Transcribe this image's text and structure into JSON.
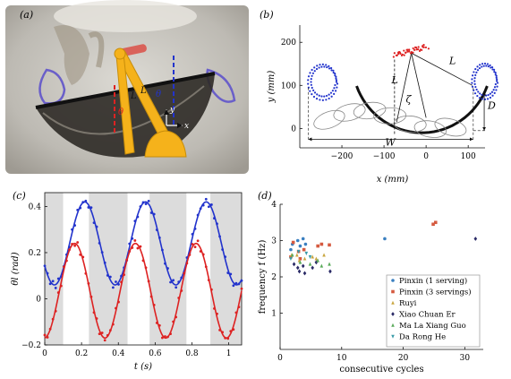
{
  "figure": {
    "panel_labels": [
      "(a)",
      "(b)",
      "(c)",
      "(d)"
    ],
    "photo_annotations": {
      "theta": "θ",
      "y": "y",
      "x": "x",
      "L1": "L",
      "L2": "L",
      "theta_l": "θ",
      "theta_r": "θ"
    },
    "colors": {
      "blue": "#2233cc",
      "red": "#dd2222",
      "black": "#111111",
      "grey": "#888888",
      "shade": "#dcdcdc",
      "arm": "#f5b21b"
    }
  },
  "chart_data": [
    {
      "panel": "(b)",
      "type": "line",
      "xlabel": "x (mm)",
      "ylabel": "y (mm)",
      "xlim": [
        -300,
        140
      ],
      "ylim": [
        -45,
        240
      ],
      "xticks": [
        -200,
        -100,
        0,
        100
      ],
      "yticks": [
        0,
        100,
        200
      ],
      "annotations": [
        "L",
        "L",
        "ζ",
        "D",
        "W"
      ],
      "pivot": [
        -35,
        175
      ],
      "wok_center": [
        -10,
        155
      ],
      "wok_radius": 165,
      "left_loop": {
        "center": [
          -245,
          108
        ],
        "rx": 32,
        "ry": 38
      },
      "right_loop": {
        "center": [
          140,
          110
        ],
        "rx": 28,
        "ry": 38
      },
      "red_cluster": {
        "from": [
          -75,
          170
        ],
        "to": [
          0,
          190
        ]
      },
      "W_from": -280,
      "W_to": 112,
      "D_from": 85,
      "D_to": -5
    },
    {
      "panel": "(c)",
      "type": "line",
      "xlabel": "t (s)",
      "ylabel": "θl (rad)",
      "xlim": [
        0,
        1.07
      ],
      "ylim": [
        -0.2,
        0.46
      ],
      "xticks": [
        0,
        0.2,
        0.4,
        0.6,
        0.8,
        1
      ],
      "yticks": [
        -0.2,
        0,
        0.2,
        0.4
      ],
      "shaded_intervals": [
        [
          0,
          0.1
        ],
        [
          0.24,
          0.45
        ],
        [
          0.57,
          0.77
        ],
        [
          0.9,
          1.07
        ]
      ],
      "series": [
        {
          "color": "blue",
          "mean": 0.24,
          "amplitude": 0.18,
          "period": 0.33,
          "phase": 0.135
        },
        {
          "color": "red",
          "mean": 0.035,
          "amplitude": 0.205,
          "period": 0.33,
          "phase": 0.08
        }
      ]
    },
    {
      "panel": "(d)",
      "type": "scatter",
      "xlabel": "consecutive cycles",
      "ylabel": "frequency f (Hz)",
      "xlim": [
        0,
        33
      ],
      "ylim": [
        0,
        4
      ],
      "xticks": [
        0,
        10,
        20,
        30
      ],
      "yticks": [
        1,
        2,
        3,
        4
      ],
      "series": [
        {
          "name": "Pinxin (1 serving)",
          "color": "#3a7fc0",
          "marker": "circle",
          "points": [
            [
              2,
              2.75
            ],
            [
              2,
              2.9
            ],
            [
              3,
              2.85
            ],
            [
              3,
              3.0
            ],
            [
              4,
              2.9
            ],
            [
              4,
              3.05
            ],
            [
              17,
              3.05
            ]
          ]
        },
        {
          "name": "Pinxin (3 servings)",
          "color": "#d55a40",
          "marker": "square",
          "points": [
            [
              2,
              2.95
            ],
            [
              2,
              2.55
            ],
            [
              3,
              2.7
            ],
            [
              3,
              2.5
            ],
            [
              4,
              2.75
            ],
            [
              6,
              2.85
            ],
            [
              7,
              2.9
            ],
            [
              8,
              2.88
            ],
            [
              25,
              3.5
            ],
            [
              25,
              3.45
            ]
          ]
        },
        {
          "name": "Ruyi",
          "color": "#c9a640",
          "marker": "triangle",
          "points": [
            [
              2,
              2.6
            ],
            [
              3,
              2.45
            ],
            [
              3,
              2.6
            ],
            [
              4,
              2.5
            ],
            [
              5,
              2.55
            ],
            [
              6,
              2.5
            ],
            [
              7,
              2.6
            ]
          ]
        },
        {
          "name": "Xiao Chuan Er",
          "color": "#2a2a66",
          "marker": "diamond",
          "points": [
            [
              2,
              2.35
            ],
            [
              3,
              2.25
            ],
            [
              3,
              2.15
            ],
            [
              4,
              2.3
            ],
            [
              4,
              2.1
            ],
            [
              5,
              2.25
            ],
            [
              6,
              2.4
            ],
            [
              8,
              2.15
            ],
            [
              32,
              3.05
            ]
          ]
        },
        {
          "name": "Ma La Xiang Guo",
          "color": "#5aaa5a",
          "marker": "triangle",
          "points": [
            [
              2,
              2.6
            ],
            [
              3,
              2.4
            ],
            [
              5,
              2.35
            ],
            [
              6,
              2.45
            ],
            [
              7,
              2.3
            ],
            [
              8,
              2.35
            ]
          ]
        },
        {
          "name": "Da Rong He",
          "color": "#3a9ba8",
          "marker": "triangle-down",
          "points": [
            [
              2,
              2.5
            ],
            [
              3,
              2.7
            ],
            [
              4,
              2.65
            ],
            [
              5,
              2.55
            ]
          ]
        }
      ]
    }
  ]
}
